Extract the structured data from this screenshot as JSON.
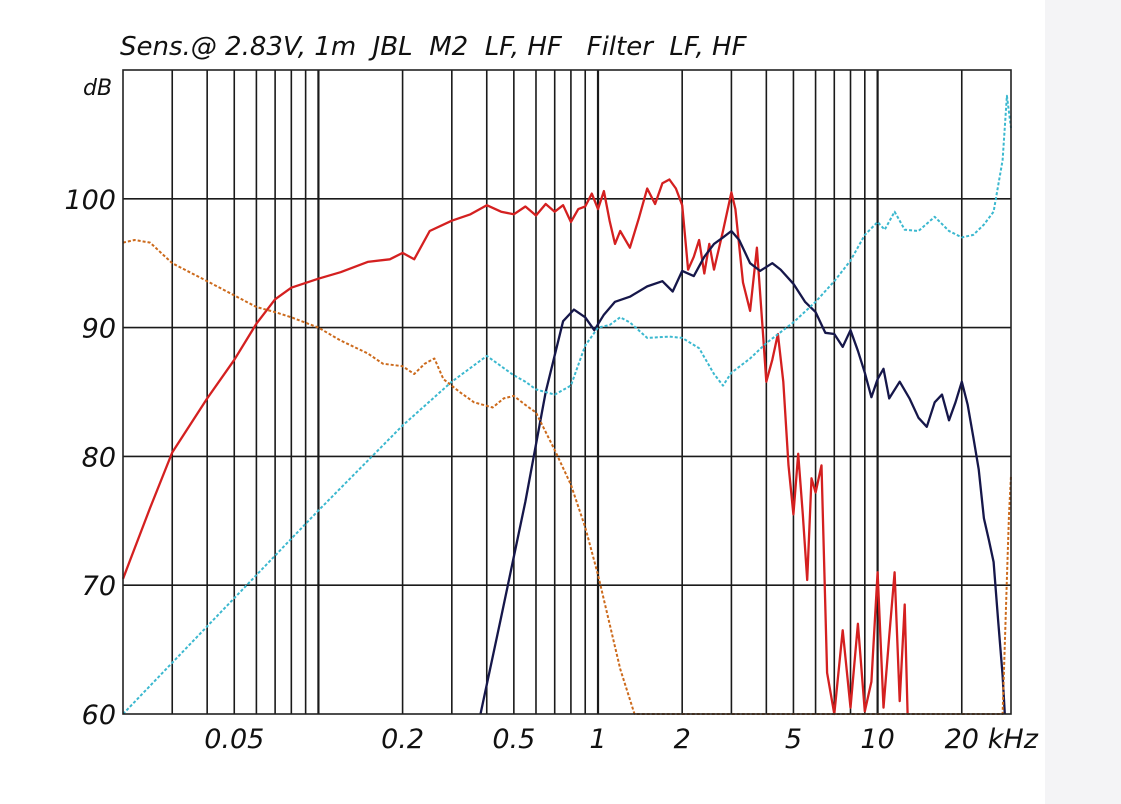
{
  "chart_data": {
    "type": "line",
    "title": "Sens.@ 2.83V, 1m  JBL  M2  LF, HF   Filter  LF, HF",
    "ylabel": "dB",
    "xunit": "kHz",
    "x_scale": "log",
    "xlim": [
      0.02,
      30
    ],
    "ylim": [
      60,
      110
    ],
    "grid": true,
    "xticks": [
      {
        "value": 0.05,
        "label": "0.05"
      },
      {
        "value": 0.2,
        "label": "0.2"
      },
      {
        "value": 0.5,
        "label": "0.5"
      },
      {
        "value": 1,
        "label": "1"
      },
      {
        "value": 2,
        "label": "2"
      },
      {
        "value": 5,
        "label": "5"
      },
      {
        "value": 10,
        "label": "10"
      },
      {
        "value": 20,
        "label": "20"
      }
    ],
    "yticks": [
      {
        "value": 60,
        "label": "60"
      },
      {
        "value": 70,
        "label": "70"
      },
      {
        "value": 80,
        "label": "80"
      },
      {
        "value": 90,
        "label": "90"
      },
      {
        "value": 100,
        "label": "100"
      }
    ],
    "series": [
      {
        "color": "#d42020",
        "style": "solid",
        "points": [
          [
            0.02,
            70.5
          ],
          [
            0.025,
            76
          ],
          [
            0.03,
            80.3
          ],
          [
            0.04,
            84.5
          ],
          [
            0.05,
            87.5
          ],
          [
            0.06,
            90.3
          ],
          [
            0.07,
            92.2
          ],
          [
            0.08,
            93.1
          ],
          [
            0.1,
            93.8
          ],
          [
            0.12,
            94.3
          ],
          [
            0.15,
            95.1
          ],
          [
            0.18,
            95.3
          ],
          [
            0.2,
            95.8
          ],
          [
            0.22,
            95.3
          ],
          [
            0.25,
            97.5
          ],
          [
            0.3,
            98.3
          ],
          [
            0.35,
            98.8
          ],
          [
            0.4,
            99.5
          ],
          [
            0.45,
            99.0
          ],
          [
            0.5,
            98.8
          ],
          [
            0.55,
            99.4
          ],
          [
            0.6,
            98.7
          ],
          [
            0.65,
            99.6
          ],
          [
            0.7,
            99.0
          ],
          [
            0.75,
            99.5
          ],
          [
            0.8,
            98.2
          ],
          [
            0.85,
            99.2
          ],
          [
            0.9,
            99.4
          ],
          [
            0.95,
            100.4
          ],
          [
            1.0,
            99.2
          ],
          [
            1.05,
            100.6
          ],
          [
            1.1,
            98.3
          ],
          [
            1.15,
            96.5
          ],
          [
            1.2,
            97.5
          ],
          [
            1.3,
            96.2
          ],
          [
            1.4,
            98.5
          ],
          [
            1.5,
            100.8
          ],
          [
            1.6,
            99.6
          ],
          [
            1.7,
            101.2
          ],
          [
            1.8,
            101.5
          ],
          [
            1.9,
            100.8
          ],
          [
            2.0,
            99.5
          ],
          [
            2.1,
            94.5
          ],
          [
            2.2,
            95.5
          ],
          [
            2.3,
            96.8
          ],
          [
            2.4,
            94.2
          ],
          [
            2.5,
            96.5
          ],
          [
            2.6,
            94.5
          ],
          [
            2.8,
            97.5
          ],
          [
            3.0,
            100.5
          ],
          [
            3.1,
            99.2
          ],
          [
            3.3,
            93.5
          ],
          [
            3.5,
            91.3
          ],
          [
            3.7,
            96.2
          ],
          [
            3.9,
            89.2
          ],
          [
            4.0,
            85.8
          ],
          [
            4.2,
            87.5
          ],
          [
            4.4,
            89.5
          ],
          [
            4.6,
            85.8
          ],
          [
            4.8,
            79.3
          ],
          [
            5.0,
            75.5
          ],
          [
            5.2,
            80.2
          ],
          [
            5.4,
            75.5
          ],
          [
            5.6,
            70.4
          ],
          [
            5.8,
            78.3
          ],
          [
            6.0,
            77.2
          ],
          [
            6.3,
            79.3
          ],
          [
            6.6,
            63.2
          ],
          [
            7.0,
            60
          ],
          [
            7.5,
            66.5
          ],
          [
            8.0,
            60.5
          ],
          [
            8.5,
            67.0
          ],
          [
            9.0,
            60.2
          ],
          [
            9.5,
            62.5
          ],
          [
            10.0,
            71.0
          ],
          [
            10.5,
            60.5
          ],
          [
            11.0,
            66.0
          ],
          [
            11.5,
            71.0
          ],
          [
            12.0,
            61.0
          ],
          [
            12.5,
            68.5
          ],
          [
            12.8,
            60
          ]
        ]
      },
      {
        "color": "#16174a",
        "style": "solid",
        "points": [
          [
            0.38,
            60
          ],
          [
            0.45,
            67.5
          ],
          [
            0.55,
            76.5
          ],
          [
            0.65,
            85
          ],
          [
            0.75,
            90.5
          ],
          [
            0.82,
            91.4
          ],
          [
            0.9,
            90.8
          ],
          [
            0.97,
            89.8
          ],
          [
            1.05,
            91.0
          ],
          [
            1.15,
            92.0
          ],
          [
            1.3,
            92.4
          ],
          [
            1.5,
            93.2
          ],
          [
            1.7,
            93.6
          ],
          [
            1.85,
            92.8
          ],
          [
            2.0,
            94.4
          ],
          [
            2.2,
            94.0
          ],
          [
            2.4,
            95.5
          ],
          [
            2.6,
            96.5
          ],
          [
            2.8,
            97.0
          ],
          [
            3.0,
            97.5
          ],
          [
            3.2,
            96.8
          ],
          [
            3.5,
            95.0
          ],
          [
            3.8,
            94.4
          ],
          [
            4.2,
            95.0
          ],
          [
            4.5,
            94.5
          ],
          [
            5.0,
            93.4
          ],
          [
            5.5,
            92.0
          ],
          [
            6.0,
            91.2
          ],
          [
            6.5,
            89.6
          ],
          [
            7.0,
            89.5
          ],
          [
            7.5,
            88.5
          ],
          [
            8.0,
            89.8
          ],
          [
            8.5,
            88.2
          ],
          [
            9.0,
            86.5
          ],
          [
            9.5,
            84.6
          ],
          [
            10.0,
            86.0
          ],
          [
            10.5,
            86.8
          ],
          [
            11.0,
            84.5
          ],
          [
            12.0,
            85.8
          ],
          [
            13.0,
            84.5
          ],
          [
            14.0,
            83.0
          ],
          [
            15.0,
            82.3
          ],
          [
            16.0,
            84.2
          ],
          [
            17.0,
            84.8
          ],
          [
            18.0,
            82.8
          ],
          [
            19.0,
            84.2
          ],
          [
            20.0,
            85.8
          ],
          [
            21.0,
            84.0
          ],
          [
            22.0,
            81.5
          ],
          [
            23.0,
            79.0
          ],
          [
            24.0,
            75.2
          ],
          [
            25.0,
            73.5
          ],
          [
            26.0,
            71.8
          ],
          [
            27.0,
            67.2
          ],
          [
            28.0,
            63.0
          ],
          [
            28.5,
            60
          ]
        ]
      },
      {
        "color": "#3bb8cf",
        "style": "dashed",
        "points": [
          [
            0.02,
            60
          ],
          [
            0.05,
            69.0
          ],
          [
            0.1,
            75.8
          ],
          [
            0.2,
            82.4
          ],
          [
            0.3,
            85.8
          ],
          [
            0.4,
            87.8
          ],
          [
            0.5,
            86.3
          ],
          [
            0.55,
            85.8
          ],
          [
            0.6,
            85.2
          ],
          [
            0.7,
            84.8
          ],
          [
            0.8,
            85.5
          ],
          [
            0.9,
            88.6
          ],
          [
            1.0,
            90.0
          ],
          [
            1.1,
            90.2
          ],
          [
            1.2,
            90.8
          ],
          [
            1.3,
            90.4
          ],
          [
            1.5,
            89.2
          ],
          [
            1.8,
            89.3
          ],
          [
            2.0,
            89.2
          ],
          [
            2.3,
            88.4
          ],
          [
            2.6,
            86.4
          ],
          [
            2.8,
            85.5
          ],
          [
            3.0,
            86.5
          ],
          [
            3.5,
            87.6
          ],
          [
            4.0,
            88.8
          ],
          [
            5.0,
            90.4
          ],
          [
            6.0,
            92.0
          ],
          [
            7.0,
            93.6
          ],
          [
            8.0,
            95.2
          ],
          [
            9.0,
            97.2
          ],
          [
            10.0,
            98.2
          ],
          [
            10.6,
            97.6
          ],
          [
            11.5,
            99.0
          ],
          [
            12.5,
            97.6
          ],
          [
            14.0,
            97.5
          ],
          [
            16.0,
            98.6
          ],
          [
            18.0,
            97.5
          ],
          [
            20.0,
            97.0
          ],
          [
            22.0,
            97.2
          ],
          [
            24.0,
            98.0
          ],
          [
            26.0,
            99.0
          ],
          [
            28.0,
            103.0
          ],
          [
            29.0,
            108.0
          ],
          [
            30.0,
            105.5
          ]
        ]
      },
      {
        "color": "#cc6a1c",
        "style": "dashed",
        "points": [
          [
            0.02,
            96.6
          ],
          [
            0.022,
            96.8
          ],
          [
            0.025,
            96.6
          ],
          [
            0.03,
            95.0
          ],
          [
            0.04,
            93.6
          ],
          [
            0.05,
            92.5
          ],
          [
            0.06,
            91.6
          ],
          [
            0.07,
            91.2
          ],
          [
            0.08,
            90.8
          ],
          [
            0.1,
            90.0
          ],
          [
            0.12,
            89.0
          ],
          [
            0.15,
            88.0
          ],
          [
            0.17,
            87.2
          ],
          [
            0.2,
            87.0
          ],
          [
            0.22,
            86.4
          ],
          [
            0.24,
            87.2
          ],
          [
            0.26,
            87.6
          ],
          [
            0.28,
            86.0
          ],
          [
            0.32,
            85.0
          ],
          [
            0.36,
            84.2
          ],
          [
            0.42,
            83.8
          ],
          [
            0.46,
            84.5
          ],
          [
            0.5,
            84.7
          ],
          [
            0.55,
            84.0
          ],
          [
            0.6,
            83.4
          ],
          [
            0.7,
            80.5
          ],
          [
            0.8,
            77.8
          ],
          [
            0.9,
            74.5
          ],
          [
            1.0,
            70.8
          ],
          [
            1.1,
            67.0
          ],
          [
            1.2,
            63.5
          ],
          [
            1.35,
            60
          ],
          [
            28.0,
            60
          ],
          [
            29.0,
            70.5
          ],
          [
            29.5,
            75.5
          ],
          [
            30.0,
            78.5
          ]
        ]
      }
    ]
  }
}
